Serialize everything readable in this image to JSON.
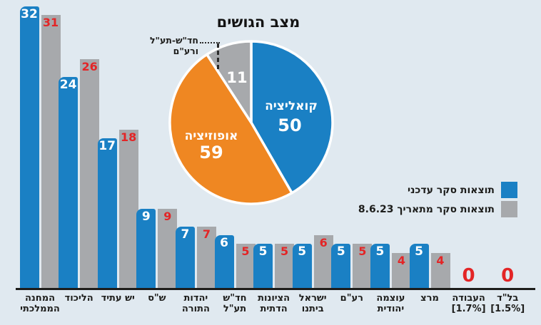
{
  "title": "מצב הגושים",
  "colors": {
    "background": "#e0e9f0",
    "current_blue": "#1a80c4",
    "previous_gray": "#a7a9ac",
    "opposition_orange": "#ef8722",
    "value_red": "#e32526",
    "axis": "#1d1d1b",
    "text_dark": "#1d1d1b",
    "white": "#ffffff"
  },
  "legend": {
    "current": "תוצאות סקר עדכני",
    "previous": "תוצאות סקר מתאריך 8.6.23"
  },
  "pie_annotation": {
    "line1": "חד\"ש-תע\"ל",
    "line2": "ורע\"ם"
  },
  "chart_data": [
    {
      "type": "bar",
      "title": "",
      "xlabel": "",
      "ylabel": "",
      "ylim": [
        0,
        32
      ],
      "grid": false,
      "legend_position": "right",
      "categories": [
        "המחנה הממלכתי",
        "הליכוד",
        "יש עתיד",
        "ש\"ס",
        "יהדות התורה",
        "חד\"ש תע\"ל",
        "הציונות הדתית",
        "ישראל ביתנו",
        "רע\"ם",
        "עוצמה יהודית",
        "מרצ",
        "העבודה [1.7%]",
        "בל\"ד [1.5%]"
      ],
      "category_lines": [
        [
          "המחנה",
          "הממלכתי"
        ],
        [
          "הליכוד"
        ],
        [
          "יש עתיד"
        ],
        [
          "ש\"ס"
        ],
        [
          "יהדות",
          "התורה"
        ],
        [
          "חד\"ש",
          "תע\"ל"
        ],
        [
          "הציונות",
          "הדתית"
        ],
        [
          "ישראל",
          "ביתנו"
        ],
        [
          "רע\"ם"
        ],
        [
          "עוצמה",
          "יהודית"
        ],
        [
          "מרצ"
        ],
        [
          "העבודה",
          "[1.7%]"
        ],
        [
          "בל\"ד",
          "[1.5%]"
        ]
      ],
      "series": [
        {
          "name": "תוצאות סקר עדכני",
          "color": "#1a80c4",
          "value_color": "#ffffff",
          "values": [
            32,
            24,
            17,
            9,
            7,
            6,
            5,
            5,
            5,
            5,
            5,
            0,
            0
          ]
        },
        {
          "name": "תוצאות סקר מתאריך 8.6.23",
          "color": "#a7a9ac",
          "value_color": "#e32526",
          "values": [
            31,
            26,
            18,
            9,
            7,
            5,
            5,
            6,
            5,
            4,
            4,
            0,
            0
          ]
        }
      ],
      "zero_display": "0"
    },
    {
      "type": "pie",
      "title": "מצב הגושים",
      "total": 120,
      "start": "top",
      "direction": "clockwise",
      "slices": [
        {
          "label": "קואליציה",
          "value": 50,
          "color": "#1a80c4"
        },
        {
          "label": "אופוזיציה",
          "value": 59,
          "color": "#ef8722"
        },
        {
          "label": "חד\"ש-תע\"ל ורע\"ם",
          "value": 11,
          "color": "#a7a9ac"
        }
      ]
    }
  ]
}
